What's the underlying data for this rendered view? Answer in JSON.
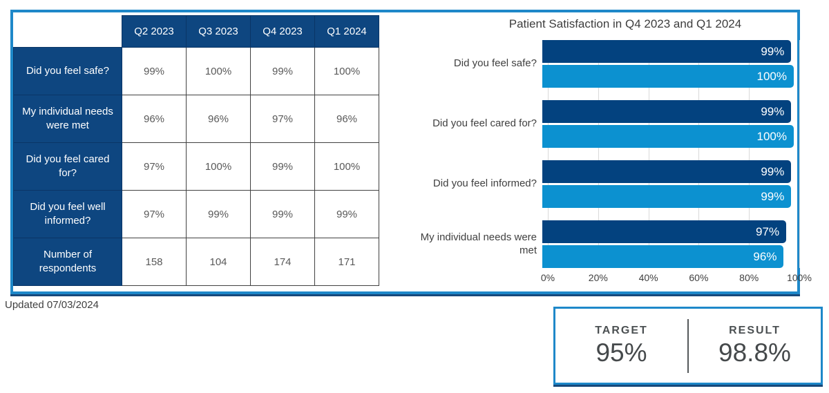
{
  "updated": "Updated 07/03/2024",
  "table": {
    "columns": [
      "Q2 2023",
      "Q3 2023",
      "Q4 2023",
      "Q1 2024"
    ],
    "rows": [
      {
        "label": "Did you feel safe?",
        "values": [
          "99%",
          "100%",
          "99%",
          "100%"
        ]
      },
      {
        "label": "My individual needs were met",
        "values": [
          "96%",
          "96%",
          "97%",
          "96%"
        ]
      },
      {
        "label": "Did you feel cared for?",
        "values": [
          "97%",
          "100%",
          "99%",
          "100%"
        ]
      },
      {
        "label": "Did you feel well informed?",
        "values": [
          "97%",
          "99%",
          "99%",
          "99%"
        ]
      },
      {
        "label": "Number of respondents",
        "values": [
          "158",
          "104",
          "174",
          "171"
        ]
      }
    ]
  },
  "chart_data": {
    "type": "bar",
    "orientation": "horizontal",
    "title": "Patient Satisfaction in Q4 2023 and Q1 2024",
    "categories": [
      "Did you feel safe?",
      "Did you feel cared for?",
      "Did you feel informed?",
      "My individual needs were met"
    ],
    "series": [
      {
        "name": "Q4 2023",
        "color": "#03427f",
        "values": [
          99,
          99,
          99,
          97
        ]
      },
      {
        "name": "Q1 2024",
        "color": "#0c91d0",
        "values": [
          100,
          100,
          99,
          96
        ]
      }
    ],
    "value_labels": [
      [
        "99%",
        "100%"
      ],
      [
        "99%",
        "100%"
      ],
      [
        "99%",
        "99%"
      ],
      [
        "97%",
        "96%"
      ]
    ],
    "xlim": [
      0,
      100
    ],
    "xticks": [
      "0%",
      "20%",
      "40%",
      "60%",
      "80%",
      "100%"
    ],
    "grid": true,
    "legend": "none"
  },
  "kpi": {
    "target_label": "TARGET",
    "target_value": "95%",
    "result_label": "RESULT",
    "result_value": "98.8%"
  },
  "colors": {
    "navy_table": "#0e4680",
    "bar_dark": "#03427f",
    "bar_light": "#0c91d0",
    "frame_blue": "#1e88c9",
    "frame_navy_edge": "#17497b",
    "gridline_gray": "#d9d9d9",
    "heading_text": "#3d3d3d",
    "cell_text": "#595959"
  }
}
